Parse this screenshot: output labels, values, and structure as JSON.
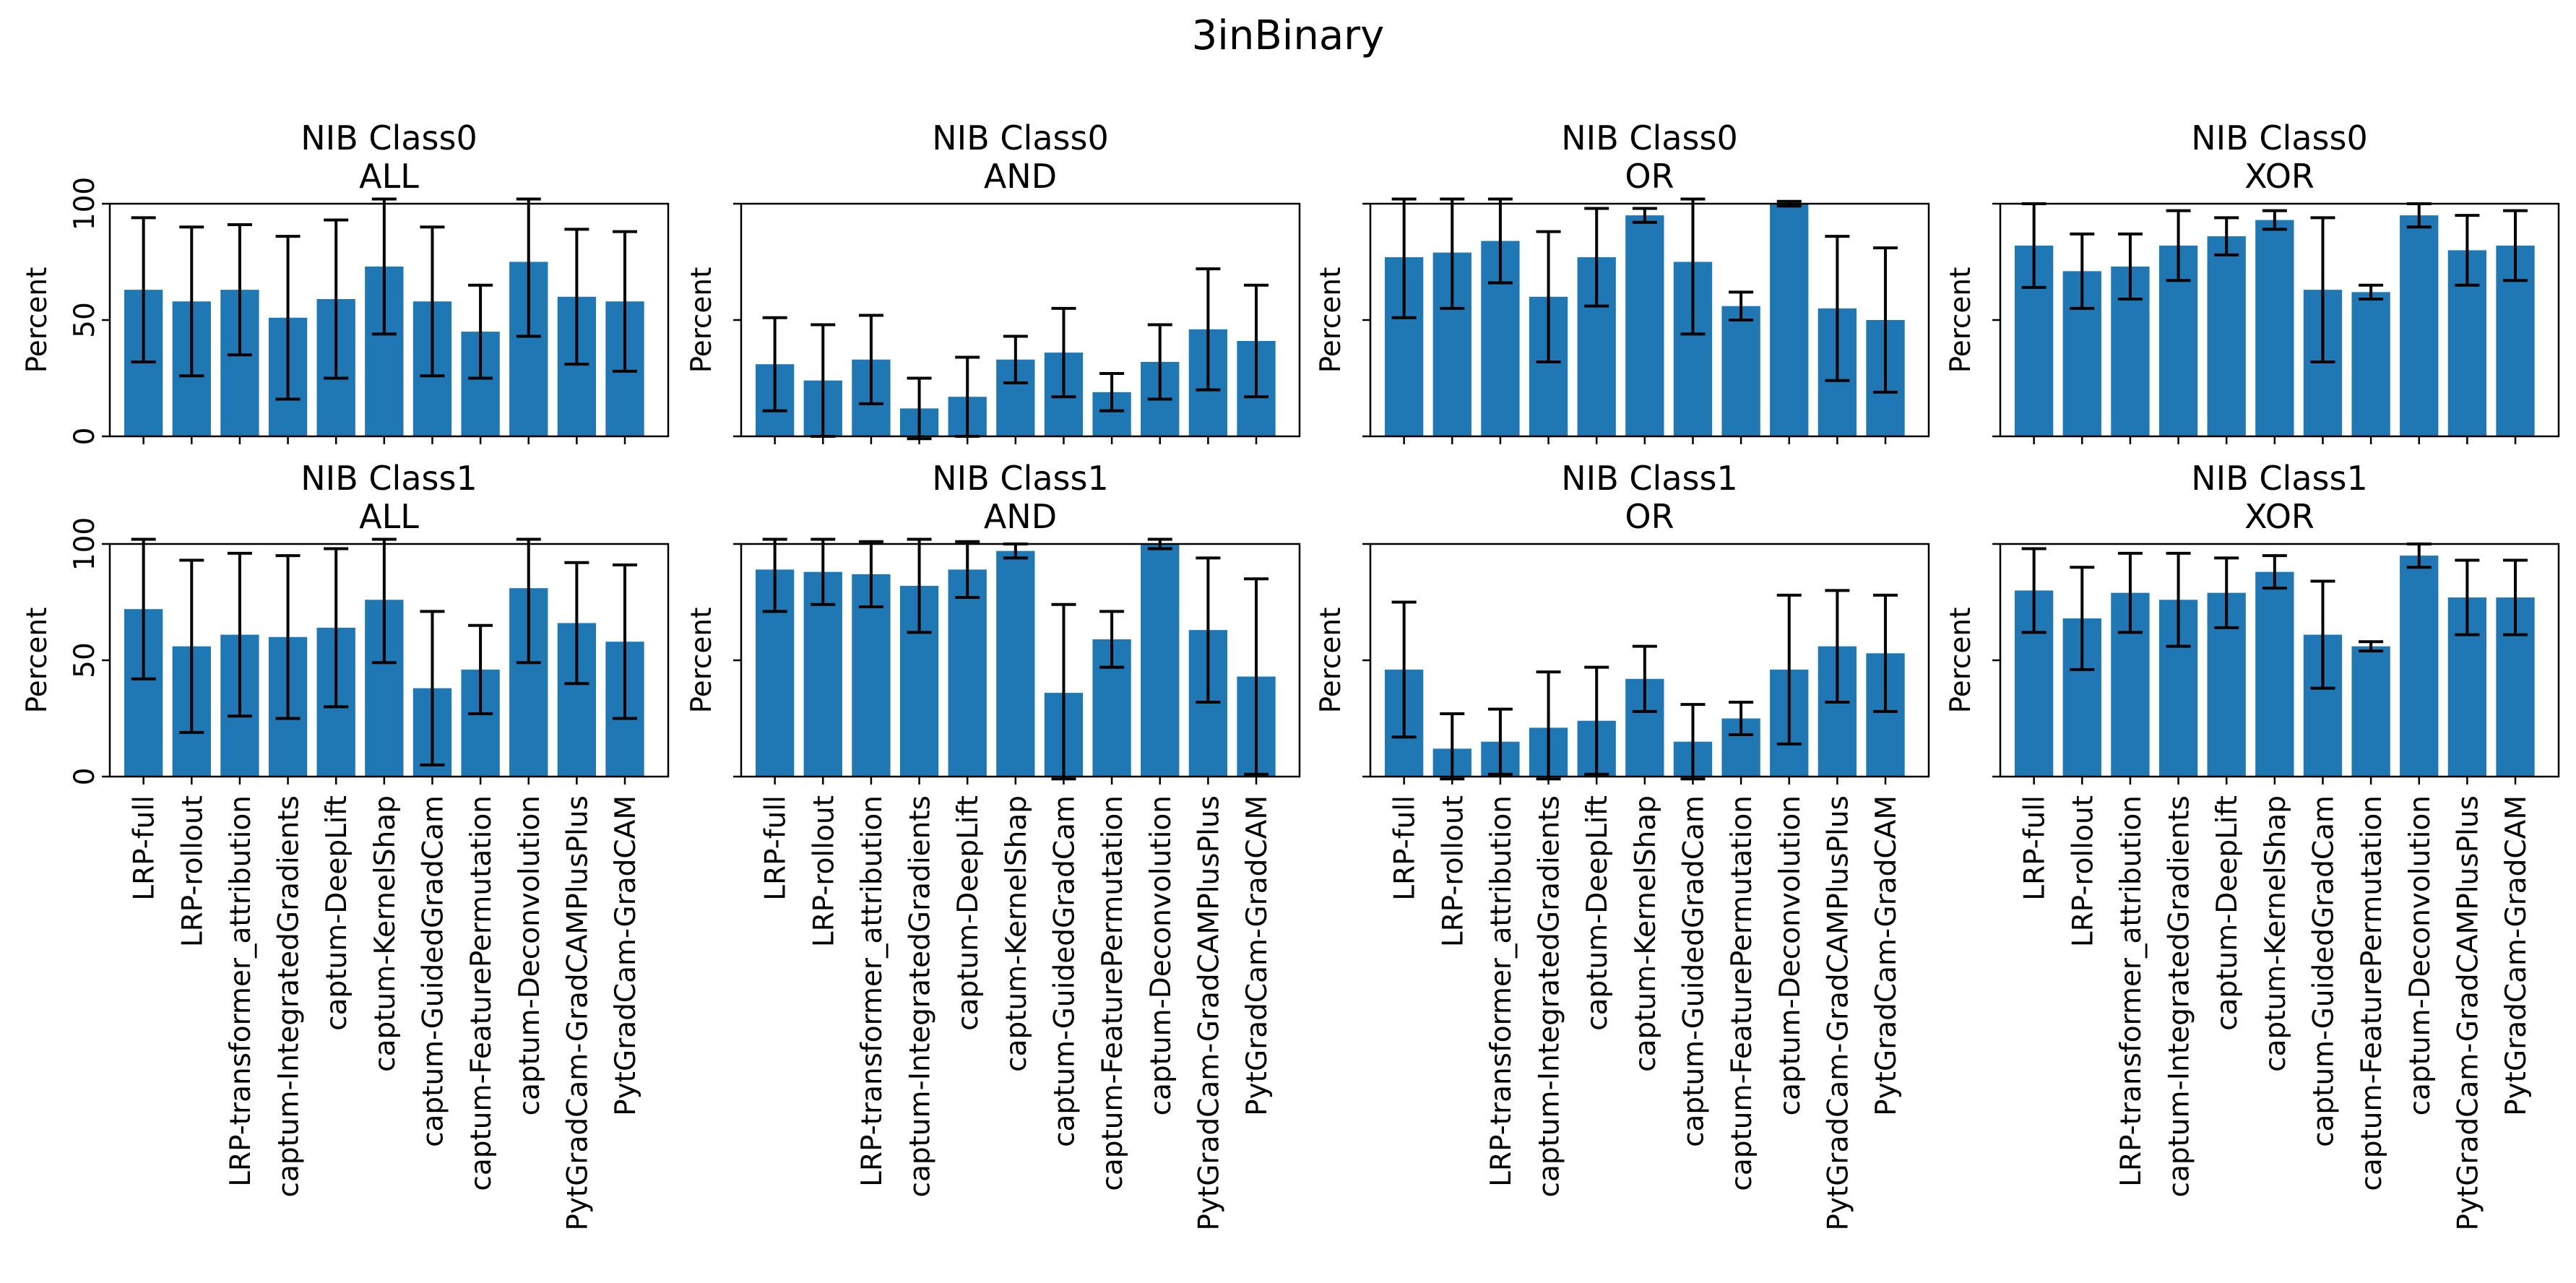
{
  "chart_data": {
    "title": "3inBinary",
    "type": "bar",
    "bar_color": "#1f77b4",
    "error_color": "#000000",
    "categories": [
      "LRP-full",
      "LRP-rollout",
      "LRP-transformer_attribution",
      "captum-IntegratedGradients",
      "captum-DeepLift",
      "captum-KernelShap",
      "captum-GuidedGradCam",
      "captum-FeaturePermutation",
      "captum-Deconvolution",
      "PytGradCam-GradCAMPlusPlus",
      "PytGradCam-GradCAM"
    ],
    "ylabel": "Percent",
    "ylim": [
      0,
      100
    ],
    "yticks": [
      "0",
      "50",
      "100"
    ],
    "panels": [
      {
        "title_line1": "NIB Class0",
        "title_line2": "ALL",
        "values": [
          63,
          58,
          63,
          51,
          59,
          73,
          58,
          45,
          75,
          60,
          58
        ],
        "errors": [
          31,
          32,
          28,
          35,
          34,
          29,
          32,
          20,
          32,
          29,
          30
        ]
      },
      {
        "title_line1": "NIB Class0",
        "title_line2": "AND",
        "values": [
          31,
          24,
          33,
          12,
          17,
          33,
          36,
          19,
          32,
          46,
          41
        ],
        "errors": [
          20,
          24,
          19,
          13,
          17,
          10,
          19,
          8,
          16,
          26,
          24
        ]
      },
      {
        "title_line1": "NIB Class0",
        "title_line2": "OR",
        "values": [
          77,
          79,
          84,
          60,
          77,
          95,
          75,
          56,
          100,
          55,
          50
        ],
        "errors": [
          26,
          24,
          18,
          28,
          21,
          3,
          31,
          6,
          1,
          31,
          31
        ]
      },
      {
        "title_line1": "NIB Class0",
        "title_line2": "XOR",
        "values": [
          82,
          71,
          73,
          82,
          86,
          93,
          63,
          62,
          95,
          80,
          82
        ],
        "errors": [
          18,
          16,
          14,
          15,
          8,
          4,
          31,
          3,
          5,
          15,
          15
        ]
      },
      {
        "title_line1": "NIB Class1",
        "title_line2": "ALL",
        "values": [
          72,
          56,
          61,
          60,
          64,
          76,
          38,
          46,
          81,
          66,
          58
        ],
        "errors": [
          30,
          37,
          35,
          35,
          34,
          27,
          33,
          19,
          32,
          26,
          33
        ]
      },
      {
        "title_line1": "NIB Class1",
        "title_line2": "AND",
        "values": [
          89,
          88,
          87,
          82,
          89,
          97,
          36,
          59,
          100,
          63,
          43
        ],
        "errors": [
          18,
          14,
          14,
          20,
          12,
          3,
          38,
          12,
          2,
          31,
          42
        ]
      },
      {
        "title_line1": "NIB Class1",
        "title_line2": "OR",
        "values": [
          46,
          12,
          15,
          21,
          24,
          42,
          15,
          25,
          46,
          56,
          53
        ],
        "errors": [
          29,
          15,
          14,
          24,
          23,
          14,
          16,
          7,
          32,
          24,
          25
        ]
      },
      {
        "title_line1": "NIB Class1",
        "title_line2": "XOR",
        "values": [
          80,
          68,
          79,
          76,
          79,
          88,
          61,
          56,
          95,
          77,
          77
        ],
        "errors": [
          18,
          22,
          17,
          20,
          15,
          7,
          23,
          2,
          5,
          16,
          16
        ]
      }
    ]
  }
}
